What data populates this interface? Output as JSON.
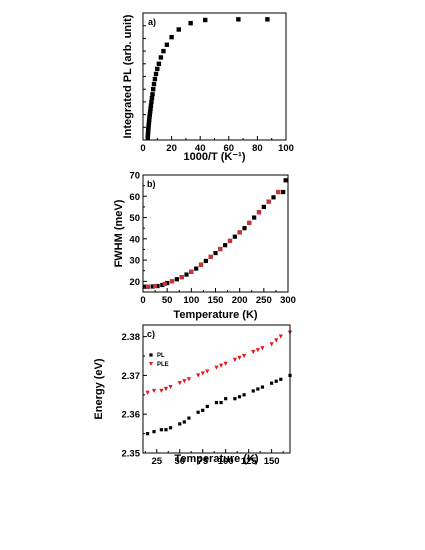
{
  "chart_data": [
    {
      "type": "scatter",
      "panel_label": "a)",
      "xlabel": "1000/T (K⁻¹)",
      "ylabel": "Integrated PL (arb. unit)",
      "xlim": [
        0,
        100
      ],
      "ylim": [
        0,
        1
      ],
      "xticks": [
        0,
        20,
        40,
        60,
        80,
        100
      ],
      "yticks": [],
      "y_minor_ticks": 10,
      "marker_color": "#000000",
      "series": [
        {
          "name": "",
          "marker": "square",
          "x": [
            3.33,
            3.45,
            3.57,
            3.7,
            3.85,
            4.0,
            4.17,
            4.35,
            4.55,
            4.76,
            5.0,
            5.26,
            5.56,
            5.88,
            6.25,
            6.67,
            7.14,
            7.69,
            8.33,
            9.09,
            10.0,
            11.1,
            12.5,
            14.3,
            16.7,
            20.0,
            25.0,
            33.3,
            43.5,
            66.7,
            87.0
          ],
          "y": [
            0.02,
            0.04,
            0.06,
            0.08,
            0.1,
            0.12,
            0.14,
            0.16,
            0.18,
            0.2,
            0.22,
            0.245,
            0.27,
            0.3,
            0.33,
            0.36,
            0.4,
            0.44,
            0.48,
            0.52,
            0.56,
            0.6,
            0.65,
            0.7,
            0.75,
            0.81,
            0.87,
            0.92,
            0.945,
            0.95,
            0.95
          ]
        }
      ]
    },
    {
      "type": "scatter",
      "panel_label": "b)",
      "xlabel": "Temperature (K)",
      "ylabel": "FWHM (meV)",
      "xlim": [
        0,
        300
      ],
      "ylim": [
        15,
        70
      ],
      "xticks": [
        0,
        50,
        100,
        150,
        200,
        250,
        300
      ],
      "yticks": [
        20,
        30,
        40,
        50,
        60,
        70
      ],
      "series": [
        {
          "name": "",
          "marker": "square",
          "color": "#000000",
          "x": [
            5,
            10,
            20,
            30,
            40,
            50,
            60,
            70,
            80,
            90,
            100,
            110,
            120,
            130,
            140,
            150,
            160,
            170,
            180,
            190,
            200,
            210,
            220,
            230,
            240,
            250,
            260,
            270,
            280,
            290,
            295
          ],
          "y": [
            17.5,
            17.5,
            17.6,
            17.8,
            18.3,
            19.2,
            20.0,
            21.0,
            22.0,
            23.2,
            24.5,
            26.0,
            27.8,
            29.6,
            31.5,
            33.3,
            35.2,
            37.0,
            39.0,
            41.0,
            43.0,
            45.0,
            47.5,
            50.0,
            52.5,
            55.0,
            57.5,
            59.5,
            62.0,
            62.0,
            67.5
          ]
        },
        {
          "name": "",
          "marker": "square",
          "color": "#cc3333",
          "x": [
            10,
            25,
            45,
            60,
            80,
            100,
            120,
            140,
            160,
            180,
            200,
            220,
            240,
            260,
            280
          ],
          "y": [
            17.5,
            17.8,
            18.8,
            20.0,
            22.0,
            24.5,
            27.8,
            31.5,
            35.2,
            39.0,
            43.0,
            47.5,
            52.5,
            57.5,
            62.0
          ]
        }
      ]
    },
    {
      "type": "scatter",
      "panel_label": "c)",
      "xlabel": "Temperature (K)",
      "ylabel": "Energy (eV)",
      "xlim": [
        10,
        170
      ],
      "ylim": [
        2.35,
        2.383
      ],
      "xticks": [
        25,
        50,
        75,
        100,
        125,
        150
      ],
      "yticks": [
        2.35,
        2.36,
        2.37,
        2.38
      ],
      "ytick_labels": [
        "2.35",
        "2.36",
        "2.37",
        "2.38"
      ],
      "legend_placement": "top-left",
      "series": [
        {
          "name": "PL",
          "marker": "square",
          "color": "#000000",
          "x": [
            15,
            22,
            30,
            35,
            40,
            50,
            55,
            60,
            70,
            75,
            80,
            90,
            95,
            100,
            110,
            115,
            120,
            130,
            135,
            140,
            150,
            155,
            160,
            170
          ],
          "y": [
            2.355,
            2.3555,
            2.356,
            2.356,
            2.3565,
            2.3575,
            2.358,
            2.359,
            2.3605,
            2.361,
            2.362,
            2.363,
            2.363,
            2.364,
            2.364,
            2.3645,
            2.365,
            2.366,
            2.3665,
            2.367,
            2.368,
            2.3685,
            2.369,
            2.37
          ]
        },
        {
          "name": "PLE",
          "marker": "triangle-down",
          "color": "#e8161c",
          "x": [
            15,
            22,
            30,
            35,
            40,
            50,
            55,
            60,
            70,
            75,
            80,
            90,
            95,
            100,
            110,
            115,
            120,
            130,
            135,
            140,
            150,
            155,
            160,
            170
          ],
          "y": [
            2.3655,
            2.366,
            2.366,
            2.3665,
            2.367,
            2.368,
            2.3685,
            2.369,
            2.37,
            2.3705,
            2.371,
            2.372,
            2.3725,
            2.373,
            2.374,
            2.3745,
            2.375,
            2.376,
            2.3765,
            2.377,
            2.378,
            2.379,
            2.38,
            2.381
          ]
        }
      ]
    }
  ]
}
